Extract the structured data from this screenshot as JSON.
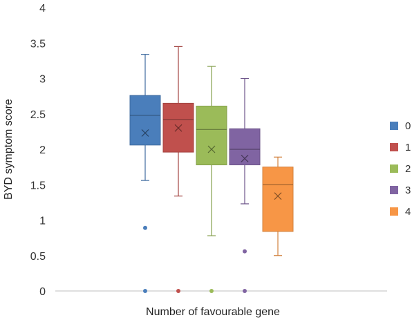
{
  "chart_data": {
    "type": "box",
    "title": "",
    "xlabel": "Number of favourable gene",
    "ylabel": "BYD symptom score",
    "ylim": [
      0,
      4
    ],
    "yticks": [
      0,
      0.5,
      1,
      1.5,
      2,
      2.5,
      3,
      3.5,
      4
    ],
    "ytick_labels": [
      "0",
      "0.5",
      "1",
      "1.5",
      "2",
      "2.5",
      "3",
      "3.5",
      "4"
    ],
    "grid": false,
    "legend_position": "right",
    "series": [
      {
        "name": "0",
        "color": "#4a7ebb",
        "whisker_low": 1.56,
        "q1": 2.06,
        "median": 2.48,
        "q3": 2.76,
        "whisker_high": 3.34,
        "mean": 2.23,
        "outliers": [
          0.89,
          0
        ]
      },
      {
        "name": "1",
        "color": "#c0504d",
        "whisker_low": 1.34,
        "q1": 1.96,
        "median": 2.42,
        "q3": 2.65,
        "whisker_high": 3.45,
        "mean": 2.3,
        "outliers": [
          0
        ]
      },
      {
        "name": "2",
        "color": "#9bbb59",
        "whisker_low": 0.78,
        "q1": 1.78,
        "median": 2.28,
        "q3": 2.61,
        "whisker_high": 3.17,
        "mean": 2.0,
        "outliers": [
          0
        ]
      },
      {
        "name": "3",
        "color": "#8064a2",
        "whisker_low": 1.23,
        "q1": 1.78,
        "median": 2.0,
        "q3": 2.29,
        "whisker_high": 3.0,
        "mean": 1.87,
        "outliers": [
          0.56,
          0
        ]
      },
      {
        "name": "4",
        "color": "#f79646",
        "whisker_low": 0.5,
        "q1": 0.84,
        "median": 1.5,
        "q3": 1.75,
        "whisker_high": 1.89,
        "mean": 1.34,
        "outliers": []
      }
    ]
  }
}
